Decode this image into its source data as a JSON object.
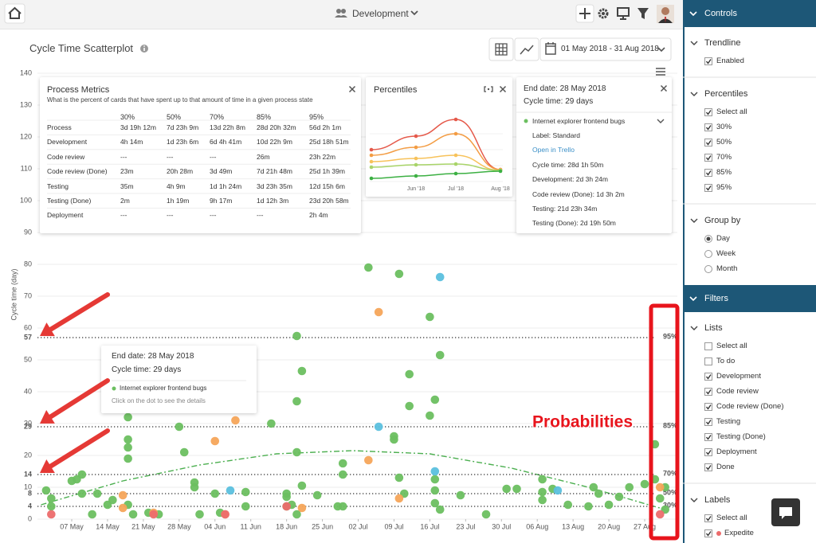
{
  "topbar": {
    "board": "Development"
  },
  "title": "Cycle Time Scatterplot",
  "date_range": "01 May 2018 - 31 Aug 2018",
  "process_metrics": {
    "title": "Process Metrics",
    "subtitle": "What is the percent of cards that have spent up to that amount of time in a given process state",
    "header": [
      null,
      "30%",
      "50%",
      "70%",
      "85%",
      "95%"
    ],
    "rows": [
      [
        "Process",
        "3d 19h 12m",
        "7d 23h 9m",
        "13d 22h 8m",
        "28d 20h 32m",
        "56d 2h 1m"
      ],
      [
        "Development",
        "4h 14m",
        "1d 23h 6m",
        "6d 4h 41m",
        "10d 22h 9m",
        "25d 18h 51m"
      ],
      [
        "Code review",
        "---",
        "---",
        "---",
        "26m",
        "23h 22m"
      ],
      [
        "Code review (Done)",
        "23m",
        "20h 28m",
        "3d 49m",
        "7d 21h 48m",
        "25d 1h 39m"
      ],
      [
        "Testing",
        "35m",
        "4h 9m",
        "1d 1h 24m",
        "3d 23h 35m",
        "12d 15h 6m"
      ],
      [
        "Testing (Done)",
        "2m",
        "1h 19m",
        "9h 17m",
        "1d 12h 3m",
        "23d 20h 58m"
      ],
      [
        "Deployment",
        "---",
        "---",
        "---",
        "---",
        "2h 4m"
      ]
    ]
  },
  "card_panel": {
    "end_date": "End date: 28 May 2018",
    "cycle_time": "Cycle time: 29 days",
    "card": "Internet explorer frontend bugs",
    "label": "Label: Standard",
    "link": "Open in Trello",
    "details": [
      "Cycle time: 28d 1h 50m",
      "Development: 2d 3h 24m",
      "Code review (Done): 1d 3h 2m",
      "Testing: 21d 23h 34m",
      "Testing (Done): 2d 19h 50m"
    ]
  },
  "tooltip": {
    "end_date": "End date: 28 May 2018",
    "cycle_time": "Cycle time: 29 days",
    "card": "Internet explorer frontend bugs",
    "hint": "Click on the dot to see the details"
  },
  "annotation": "Probabilities",
  "chart_data": [
    {
      "type": "scatter",
      "y_label": "Cycle time (day)",
      "grid": true,
      "xlim": [
        "2018-05-01",
        "2018-08-31"
      ],
      "xticks": [
        {
          "value": "2018-05-07",
          "label": "07 May"
        },
        {
          "value": "2018-05-14",
          "label": "14 May"
        },
        {
          "value": "2018-05-21",
          "label": "21 May"
        },
        {
          "value": "2018-05-28",
          "label": "28 May"
        },
        {
          "value": "2018-06-04",
          "label": "04 Jun"
        },
        {
          "value": "2018-06-11",
          "label": "11 Jun"
        },
        {
          "value": "2018-06-18",
          "label": "18 Jun"
        },
        {
          "value": "2018-06-25",
          "label": "25 Jun"
        },
        {
          "value": "2018-07-02",
          "label": "02 Jul"
        },
        {
          "value": "2018-07-09",
          "label": "09 Jul"
        },
        {
          "value": "2018-07-16",
          "label": "16 Jul"
        },
        {
          "value": "2018-07-23",
          "label": "23 Jul"
        },
        {
          "value": "2018-07-30",
          "label": "30 Jul"
        },
        {
          "value": "2018-08-06",
          "label": "06 Aug"
        },
        {
          "value": "2018-08-13",
          "label": "13 Aug"
        },
        {
          "value": "2018-08-20",
          "label": "20 Aug"
        },
        {
          "value": "2018-08-27",
          "label": "27 Aug"
        }
      ],
      "ylim": [
        0,
        140
      ],
      "yticks": [
        0,
        10,
        20,
        30,
        40,
        50,
        60,
        70,
        80,
        90,
        100,
        110,
        120,
        130,
        140
      ],
      "percentile_lines": [
        {
          "label": "95%",
          "value": 57
        },
        {
          "label": "85%",
          "value": 29
        },
        {
          "label": "70%",
          "value": 14
        },
        {
          "label": "50%",
          "value": 8
        },
        {
          "label": "30%",
          "value": 4
        }
      ],
      "trendline": {
        "color": "#4caf50",
        "x": [
          "2018-05-01",
          "2018-05-17",
          "2018-06-01",
          "2018-06-16",
          "2018-07-01",
          "2018-07-16",
          "2018-08-01",
          "2018-08-16",
          "2018-08-31"
        ],
        "values": [
          4.5,
          12,
          17,
          20.5,
          21.5,
          20.5,
          16,
          10,
          3
        ]
      },
      "series": [
        {
          "color": "#6cbf60",
          "x": [
            "2018-05-02",
            "2018-05-03",
            "2018-05-03",
            "2018-05-07",
            "2018-05-08",
            "2018-05-09",
            "2018-05-09",
            "2018-05-11",
            "2018-05-12",
            "2018-05-14",
            "2018-05-15",
            "2018-05-18",
            "2018-05-18",
            "2018-05-18",
            "2018-05-18",
            "2018-05-18",
            "2018-05-19",
            "2018-05-22",
            "2018-05-24",
            "2018-05-28",
            "2018-05-29",
            "2018-05-31",
            "2018-05-31",
            "2018-06-01",
            "2018-06-04",
            "2018-06-05",
            "2018-06-10",
            "2018-06-10",
            "2018-06-15",
            "2018-06-18",
            "2018-06-18",
            "2018-06-18",
            "2018-06-19",
            "2018-06-20",
            "2018-06-20",
            "2018-06-20",
            "2018-06-20",
            "2018-06-21",
            "2018-06-21",
            "2018-06-24",
            "2018-06-28",
            "2018-06-29",
            "2018-06-29",
            "2018-06-29",
            "2018-07-04",
            "2018-07-10",
            "2018-07-09",
            "2018-07-09",
            "2018-07-10",
            "2018-07-11",
            "2018-07-12",
            "2018-07-12",
            "2018-07-16",
            "2018-07-17",
            "2018-07-16",
            "2018-07-18",
            "2018-07-17",
            "2018-07-17",
            "2018-07-17",
            "2018-07-18",
            "2018-07-22",
            "2018-07-27",
            "2018-07-31",
            "2018-08-02",
            "2018-08-07",
            "2018-08-07",
            "2018-08-07",
            "2018-08-09",
            "2018-08-12",
            "2018-08-16",
            "2018-08-17",
            "2018-08-18",
            "2018-08-20",
            "2018-08-22",
            "2018-08-24",
            "2018-08-27",
            "2018-08-29",
            "2018-08-29",
            "2018-08-30",
            "2018-08-31",
            "2018-08-31"
          ],
          "values": [
            9,
            6.5,
            4,
            12,
            12.5,
            14,
            8,
            1.5,
            8,
            4.5,
            6,
            32,
            25,
            22.5,
            19,
            4.5,
            1.5,
            2,
            1.5,
            29,
            21,
            11.5,
            10,
            1.5,
            8,
            2,
            4,
            8.5,
            30,
            7,
            4,
            8,
            4.5,
            1.5,
            57.5,
            37,
            21,
            46.5,
            10.5,
            7.5,
            4,
            17.5,
            14,
            4,
            79,
            77,
            26,
            25,
            13,
            8,
            45.5,
            35.5,
            63.5,
            37.5,
            32.5,
            51.5,
            12.5,
            9,
            5,
            3,
            7.5,
            1.5,
            9.5,
            9.5,
            12.5,
            6,
            8.5,
            9.5,
            4.5,
            4,
            10,
            8,
            4.5,
            7,
            10,
            11,
            12.5,
            23.5,
            6.5,
            10,
            3
          ]
        },
        {
          "color": "#f5a55a",
          "x": [
            "2018-05-17",
            "2018-05-17",
            "2018-05-23",
            "2018-06-04",
            "2018-06-06",
            "2018-06-08",
            "2018-06-21",
            "2018-07-04",
            "2018-07-06",
            "2018-07-10",
            "2018-08-30"
          ],
          "values": [
            7.5,
            3.5,
            2,
            24.5,
            1.5,
            31,
            3.5,
            18.5,
            65,
            6.5,
            10
          ]
        },
        {
          "color": "#5bc0de",
          "x": [
            "2018-06-07",
            "2018-07-06",
            "2018-07-18",
            "2018-07-17",
            "2018-08-10"
          ],
          "values": [
            9,
            29,
            76,
            15,
            9
          ]
        },
        {
          "color": "#ec6b6b",
          "x": [
            "2018-05-03",
            "2018-05-23",
            "2018-06-06",
            "2018-06-18",
            "2018-08-30"
          ],
          "values": [
            1.5,
            1.5,
            1.5,
            4,
            1.5
          ]
        }
      ]
    },
    {
      "type": "line",
      "title": "Percentiles",
      "categories": [
        null,
        "Jun '18",
        "Jul '18",
        "Aug '18"
      ],
      "series": [
        {
          "color": "#e5594a",
          "values": [
            40,
            57,
            78,
            15
          ]
        },
        {
          "color": "#f39c43",
          "values": [
            33,
            43,
            60,
            15
          ]
        },
        {
          "color": "#f7c25a",
          "values": [
            25,
            29,
            33,
            14
          ]
        },
        {
          "color": "#a8d468",
          "values": [
            18,
            21,
            22,
            14
          ]
        },
        {
          "color": "#3cb043",
          "values": [
            4,
            7,
            10,
            13
          ]
        }
      ]
    }
  ],
  "sidebar": {
    "controls": {
      "title": "Controls",
      "sections": [
        {
          "title": "Trendline",
          "input": "checkbox",
          "items": [
            {
              "label": "Enabled",
              "checked": true
            }
          ]
        },
        {
          "title": "Percentiles",
          "input": "checkbox",
          "items": [
            {
              "label": "Select all",
              "checked": true
            },
            {
              "label": "30%",
              "checked": true
            },
            {
              "label": "50%",
              "checked": true
            },
            {
              "label": "70%",
              "checked": true
            },
            {
              "label": "85%",
              "checked": true
            },
            {
              "label": "95%",
              "checked": true
            }
          ]
        },
        {
          "title": "Group by",
          "input": "radio",
          "items": [
            {
              "label": "Day",
              "checked": true
            },
            {
              "label": "Week",
              "checked": false
            },
            {
              "label": "Month",
              "checked": false
            }
          ]
        }
      ]
    },
    "filters": {
      "title": "Filters",
      "sections": [
        {
          "title": "Lists",
          "input": "checkbox",
          "items": [
            {
              "label": "Select all",
              "checked": false
            },
            {
              "label": "To do",
              "checked": false
            },
            {
              "label": "Development",
              "checked": true
            },
            {
              "label": "Code review",
              "checked": true
            },
            {
              "label": "Code review (Done)",
              "checked": true
            },
            {
              "label": "Testing",
              "checked": true
            },
            {
              "label": "Testing (Done)",
              "checked": true
            },
            {
              "label": "Deployment",
              "checked": true
            },
            {
              "label": "Done",
              "checked": true
            }
          ]
        },
        {
          "title": "Labels",
          "input": "checkbox",
          "items": [
            {
              "label": "Select all",
              "checked": true
            },
            {
              "label": "Expedite",
              "checked": true,
              "color": "#ec6b6b"
            }
          ]
        }
      ]
    }
  }
}
